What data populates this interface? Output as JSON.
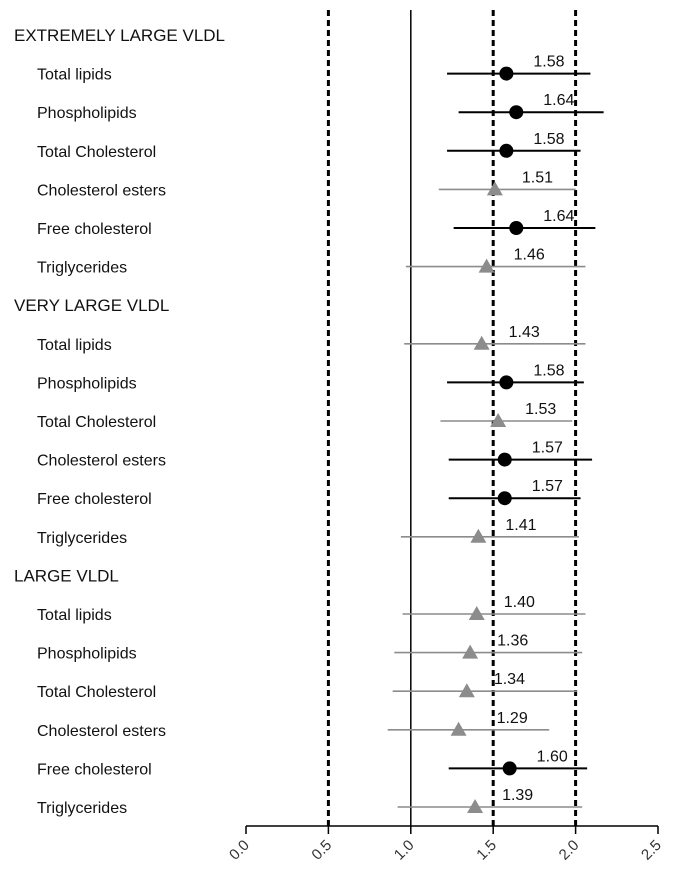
{
  "chart_data": {
    "type": "forest",
    "title": "",
    "xlabel": "",
    "ylabel": "",
    "xlim": [
      0,
      2.5
    ],
    "x_ticks": [
      "0.0",
      "0.5",
      "1.0",
      "1.5",
      "2.0",
      "2.5"
    ],
    "reference_lines": [
      {
        "x": 0.5,
        "style": "dashed"
      },
      {
        "x": 1.0,
        "style": "solid"
      },
      {
        "x": 1.5,
        "style": "dashed"
      },
      {
        "x": 2.0,
        "style": "dashed"
      }
    ],
    "marker_colors": {
      "circle": "#000000",
      "triangle": "#8c8c8c"
    },
    "groups": [
      {
        "label": "EXTREMELY LARGE VLDL",
        "rows": [
          {
            "label": "Total lipids",
            "value": 1.58,
            "value_label": "1.58",
            "low": 1.22,
            "high": 2.09,
            "marker": "circle"
          },
          {
            "label": "Phospholipids",
            "value": 1.64,
            "value_label": "1.64",
            "low": 1.29,
            "high": 2.17,
            "marker": "circle"
          },
          {
            "label": "Total Cholesterol",
            "value": 1.58,
            "value_label": "1.58",
            "low": 1.22,
            "high": 2.03,
            "marker": "circle"
          },
          {
            "label": "Cholesterol esters",
            "value": 1.51,
            "value_label": "1.51",
            "low": 1.17,
            "high": 2.0,
            "marker": "triangle"
          },
          {
            "label": "Free cholesterol",
            "value": 1.64,
            "value_label": "1.64",
            "low": 1.26,
            "high": 2.12,
            "marker": "circle"
          },
          {
            "label": "Triglycerides",
            "value": 1.46,
            "value_label": "1.46",
            "low": 0.97,
            "high": 2.06,
            "marker": "triangle"
          }
        ]
      },
      {
        "label": "VERY LARGE VLDL",
        "rows": [
          {
            "label": "Total lipids",
            "value": 1.43,
            "value_label": "1.43",
            "low": 0.96,
            "high": 2.06,
            "marker": "triangle"
          },
          {
            "label": "Phospholipids",
            "value": 1.58,
            "value_label": "1.58",
            "low": 1.22,
            "high": 2.05,
            "marker": "circle"
          },
          {
            "label": "Total Cholesterol",
            "value": 1.53,
            "value_label": "1.53",
            "low": 1.18,
            "high": 1.98,
            "marker": "triangle"
          },
          {
            "label": "Cholesterol esters",
            "value": 1.57,
            "value_label": "1.57",
            "low": 1.23,
            "high": 2.1,
            "marker": "circle"
          },
          {
            "label": "Free cholesterol",
            "value": 1.57,
            "value_label": "1.57",
            "low": 1.23,
            "high": 2.03,
            "marker": "circle"
          },
          {
            "label": "Triglycerides",
            "value": 1.41,
            "value_label": "1.41",
            "low": 0.94,
            "high": 2.02,
            "marker": "triangle"
          }
        ]
      },
      {
        "label": "LARGE VLDL",
        "rows": [
          {
            "label": "Total lipids",
            "value": 1.4,
            "value_label": "1.40",
            "low": 0.95,
            "high": 2.06,
            "marker": "triangle"
          },
          {
            "label": "Phospholipids",
            "value": 1.36,
            "value_label": "1.36",
            "low": 0.9,
            "high": 2.04,
            "marker": "triangle"
          },
          {
            "label": "Total Cholesterol",
            "value": 1.34,
            "value_label": "1.34",
            "low": 0.89,
            "high": 2.01,
            "marker": "triangle"
          },
          {
            "label": "Cholesterol esters",
            "value": 1.29,
            "value_label": "1.29",
            "low": 0.86,
            "high": 1.84,
            "marker": "triangle"
          },
          {
            "label": "Free cholesterol",
            "value": 1.6,
            "value_label": "1.60",
            "low": 1.23,
            "high": 2.07,
            "marker": "circle"
          },
          {
            "label": "Triglycerides",
            "value": 1.39,
            "value_label": "1.39",
            "low": 0.92,
            "high": 2.04,
            "marker": "triangle"
          }
        ]
      }
    ]
  }
}
